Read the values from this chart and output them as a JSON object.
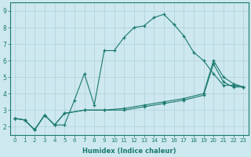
{
  "xlabel": "Humidex (Indice chaleur)",
  "xlim": [
    -0.5,
    23.5
  ],
  "ylim": [
    1.5,
    9.5
  ],
  "xticks": [
    0,
    1,
    2,
    3,
    4,
    5,
    6,
    7,
    8,
    9,
    10,
    11,
    12,
    13,
    14,
    15,
    16,
    17,
    18,
    19,
    20,
    21,
    22,
    23
  ],
  "yticks": [
    2,
    3,
    4,
    5,
    6,
    7,
    8,
    9
  ],
  "bg_color": "#cde8ee",
  "grid_color": "#b0d0d8",
  "line_color": "#1a7a6e",
  "line1_x": [
    0,
    1,
    2,
    3,
    4,
    5,
    6,
    7,
    8,
    9,
    10,
    11,
    12,
    13,
    14,
    15,
    16,
    17,
    18,
    19,
    20,
    21,
    22,
    23
  ],
  "line1_y": [
    2.5,
    2.4,
    1.8,
    2.7,
    2.1,
    2.1,
    3.6,
    5.2,
    3.3,
    6.6,
    6.6,
    7.4,
    8.0,
    8.1,
    8.6,
    8.8,
    8.2,
    7.5,
    6.5,
    6.0,
    5.2,
    4.5,
    4.5,
    4.4
  ],
  "line2_x": [
    0,
    1,
    2,
    3,
    4,
    5,
    7,
    9,
    11,
    13,
    15,
    17,
    19,
    20,
    21,
    22,
    23
  ],
  "line2_y": [
    2.5,
    2.4,
    1.8,
    2.7,
    2.1,
    2.8,
    3.0,
    3.0,
    3.1,
    3.3,
    3.5,
    3.7,
    4.0,
    6.0,
    5.0,
    4.6,
    4.4
  ],
  "line3_x": [
    0,
    1,
    2,
    3,
    4,
    5,
    7,
    9,
    11,
    13,
    15,
    17,
    19,
    20,
    21,
    22,
    23
  ],
  "line3_y": [
    2.5,
    2.4,
    1.8,
    2.7,
    2.1,
    2.8,
    3.0,
    3.0,
    3.0,
    3.2,
    3.4,
    3.6,
    3.9,
    5.8,
    4.7,
    4.4,
    4.4
  ]
}
